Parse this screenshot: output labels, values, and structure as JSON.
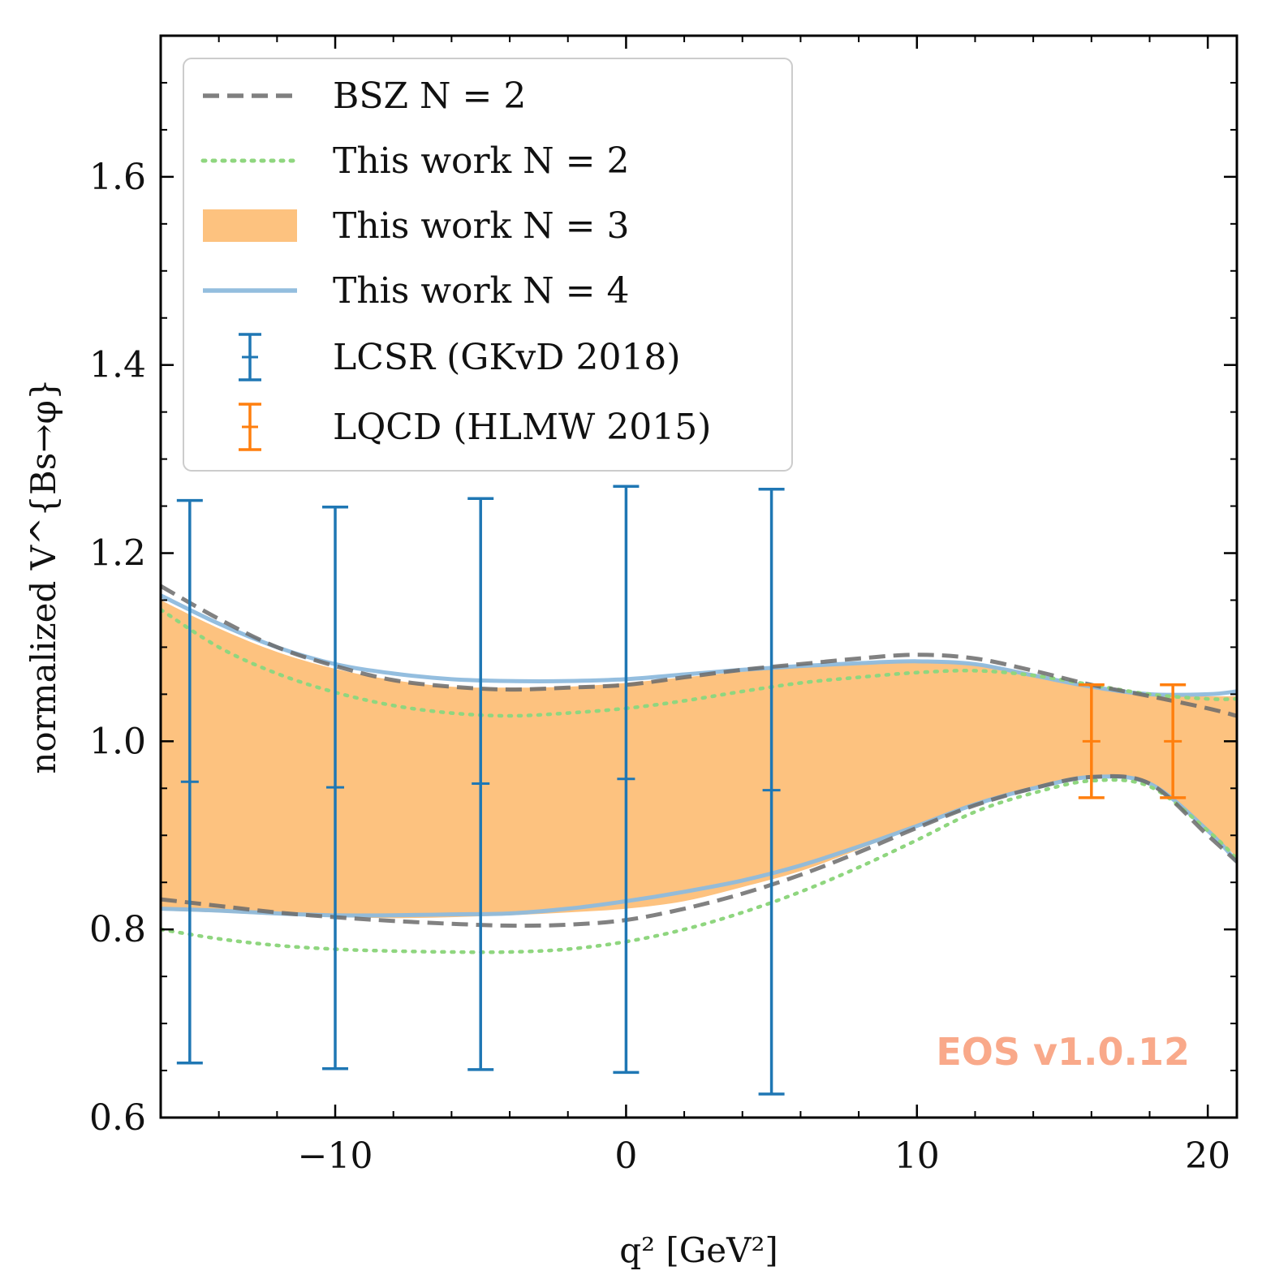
{
  "chart_data": {
    "type": "line",
    "xlabel": "q² [GeV²]",
    "ylabel": "normalized V^{Bs→φ}",
    "xlim": [
      -16,
      21
    ],
    "ylim": [
      0.6,
      1.75
    ],
    "x_ticks": [
      -10,
      0,
      10,
      20
    ],
    "x_tick_labels": [
      "−10",
      "0",
      "10",
      "20"
    ],
    "y_ticks": [
      0.6,
      0.8,
      1.0,
      1.2,
      1.4,
      1.6
    ],
    "y_tick_labels": [
      "0.6",
      "0.8",
      "1.0",
      "1.2",
      "1.4",
      "1.6"
    ],
    "grid": false,
    "legend_position": "top-left",
    "watermark": "EOS v1.0.12",
    "colors": {
      "bsz": "#6b6b6b",
      "n2": "#8fd67f",
      "n3_band": "#fdc27f",
      "n4": "#8ebbdd",
      "lcsr": "#1f77b4",
      "lqcd": "#ff7f0e",
      "watermark": "#f9a98a"
    },
    "series": [
      {
        "name": "BSZ N = 2",
        "style": "dashed",
        "x": [
          -16,
          -14,
          -12,
          -10,
          -8,
          -6,
          -4,
          -2,
          0,
          2,
          4,
          6,
          8,
          10,
          12,
          14,
          16,
          18,
          20,
          21
        ],
        "upper": [
          1.165,
          1.13,
          1.1,
          1.08,
          1.065,
          1.058,
          1.055,
          1.057,
          1.06,
          1.068,
          1.076,
          1.082,
          1.088,
          1.092,
          1.088,
          1.075,
          1.06,
          1.048,
          1.035,
          1.027
        ],
        "lower": [
          0.832,
          0.825,
          0.818,
          0.813,
          0.809,
          0.806,
          0.804,
          0.805,
          0.81,
          0.822,
          0.838,
          0.858,
          0.882,
          0.908,
          0.932,
          0.95,
          0.962,
          0.955,
          0.9,
          0.872
        ]
      },
      {
        "name": "This work N = 2",
        "style": "dotted",
        "x": [
          -16,
          -14,
          -12,
          -10,
          -8,
          -6,
          -4,
          -2,
          0,
          2,
          4,
          6,
          8,
          10,
          12,
          14,
          16,
          18,
          20,
          21
        ],
        "upper": [
          1.14,
          1.1,
          1.072,
          1.052,
          1.038,
          1.03,
          1.027,
          1.03,
          1.035,
          1.043,
          1.053,
          1.062,
          1.068,
          1.073,
          1.075,
          1.07,
          1.06,
          1.05,
          1.045,
          1.045
        ],
        "lower": [
          0.8,
          0.79,
          0.783,
          0.779,
          0.777,
          0.776,
          0.776,
          0.779,
          0.787,
          0.8,
          0.818,
          0.84,
          0.866,
          0.895,
          0.925,
          0.945,
          0.958,
          0.952,
          0.905,
          0.875
        ]
      },
      {
        "name": "This work N = 3",
        "style": "band",
        "x": [
          -16,
          -14,
          -12,
          -10,
          -8,
          -6,
          -4,
          -2,
          0,
          2,
          4,
          6,
          8,
          10,
          12,
          14,
          16,
          18,
          20,
          21
        ],
        "upper": [
          1.15,
          1.12,
          1.095,
          1.077,
          1.065,
          1.058,
          1.057,
          1.058,
          1.062,
          1.068,
          1.074,
          1.079,
          1.083,
          1.085,
          1.082,
          1.072,
          1.058,
          1.05,
          1.048,
          1.048
        ],
        "lower": [
          0.82,
          0.818,
          0.815,
          0.813,
          0.812,
          0.813,
          0.815,
          0.818,
          0.822,
          0.83,
          0.845,
          0.862,
          0.885,
          0.91,
          0.933,
          0.95,
          0.962,
          0.955,
          0.905,
          0.877
        ]
      },
      {
        "name": "This work N = 4",
        "style": "solid",
        "x": [
          -16,
          -14,
          -12,
          -10,
          -8,
          -6,
          -4,
          -2,
          0,
          2,
          4,
          6,
          8,
          10,
          12,
          14,
          16,
          18,
          20,
          21
        ],
        "upper": [
          1.155,
          1.125,
          1.1,
          1.082,
          1.072,
          1.066,
          1.064,
          1.064,
          1.066,
          1.071,
          1.076,
          1.08,
          1.083,
          1.085,
          1.082,
          1.07,
          1.058,
          1.05,
          1.05,
          1.053
        ],
        "lower": [
          0.822,
          0.82,
          0.817,
          0.815,
          0.815,
          0.816,
          0.817,
          0.822,
          0.83,
          0.84,
          0.852,
          0.868,
          0.888,
          0.91,
          0.933,
          0.95,
          0.962,
          0.955,
          0.905,
          0.872
        ]
      }
    ],
    "error_bars": [
      {
        "name": "LCSR (GKvD 2018)",
        "points": [
          {
            "x": -15,
            "y": 0.957,
            "lo": 0.658,
            "hi": 1.256
          },
          {
            "x": -10,
            "y": 0.951,
            "lo": 0.652,
            "hi": 1.249
          },
          {
            "x": -5,
            "y": 0.955,
            "lo": 0.651,
            "hi": 1.258
          },
          {
            "x": 0,
            "y": 0.96,
            "lo": 0.648,
            "hi": 1.271
          },
          {
            "x": 5,
            "y": 0.948,
            "lo": 0.625,
            "hi": 1.268
          }
        ]
      },
      {
        "name": "LQCD (HLMW 2015)",
        "points": [
          {
            "x": 16,
            "y": 1.0,
            "lo": 0.94,
            "hi": 1.06
          },
          {
            "x": 18.8,
            "y": 1.0,
            "lo": 0.94,
            "hi": 1.06
          }
        ]
      }
    ]
  }
}
